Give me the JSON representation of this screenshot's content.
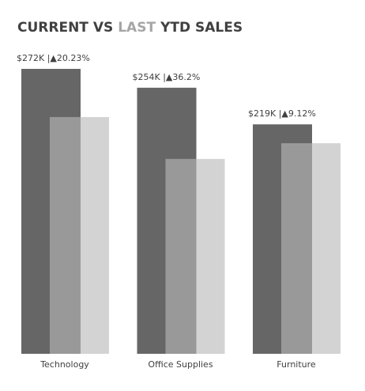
{
  "chart_data": {
    "type": "bar",
    "title": [
      "CURRENT VS",
      "LAST",
      "YTD SALES"
    ],
    "title_colors": [
      "#404040",
      "#a6a6a6",
      "#404040"
    ],
    "categories": [
      "Technology",
      "Office Supplies",
      "Furniture"
    ],
    "series": [
      {
        "name": "Current",
        "color": "#666666",
        "values": [
          272000,
          254000,
          219000
        ],
        "value_labels": [
          "$272K |▲20.23%",
          "$254K |▲36.2%",
          "$219K |▲9.12%"
        ]
      },
      {
        "name": "Last",
        "color": "#999999",
        "shade_color": "#d3d3d3",
        "values": [
          226000,
          186000,
          201000
        ]
      }
    ]
  }
}
